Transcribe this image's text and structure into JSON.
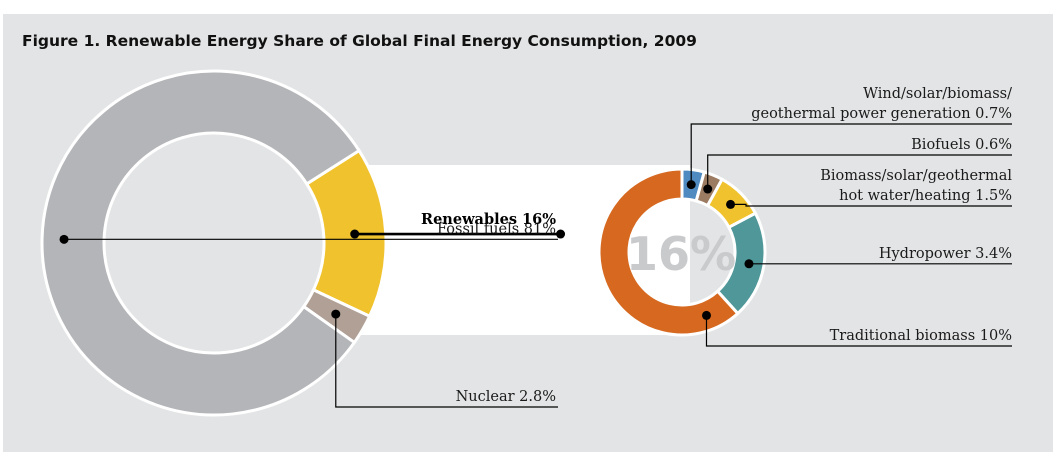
{
  "figure": {
    "title": "Figure 1. Renewable Energy Share of Global Final Energy Consumption, 2009",
    "center_label": "16%"
  },
  "chart_data": [
    {
      "type": "pie",
      "variant": "donut",
      "slices": [
        {
          "label": "Fossil fuels",
          "value": 81,
          "display": "Fossil fuels  81%",
          "color": "#b4b5b8"
        },
        {
          "label": "Nuclear",
          "value": 2.8,
          "display": "Nuclear  2.8%",
          "color": "#b0a096"
        },
        {
          "label": "Renewables",
          "value": 16,
          "display": "Renewables  16%",
          "color": "#f0c32e"
        }
      ]
    },
    {
      "type": "pie",
      "variant": "donut",
      "center_text": "16%",
      "slices": [
        {
          "label": "Wind/solar/biomass/geothermal power generation",
          "value": 0.7,
          "display_lines": [
            "Wind/solar/biomass/",
            "geothermal power generation 0.7%"
          ],
          "color": "#4f8ac0"
        },
        {
          "label": "Biofuels",
          "value": 0.6,
          "display_lines": [
            "Biofuels 0.6%"
          ],
          "color": "#9b7b62"
        },
        {
          "label": "Biomass/solar/geothermal hot water/heating",
          "value": 1.5,
          "display_lines": [
            "Biomass/solar/geothermal",
            "hot water/heating 1.5%"
          ],
          "color": "#f0c32e"
        },
        {
          "label": "Hydropower",
          "value": 3.4,
          "display_lines": [
            "Hydropower  3.4%"
          ],
          "color": "#4f9799"
        },
        {
          "label": "Traditional biomass",
          "value": 10,
          "display_lines": [
            "Traditional biomass 10%"
          ],
          "color": "#d6691f"
        }
      ]
    }
  ]
}
